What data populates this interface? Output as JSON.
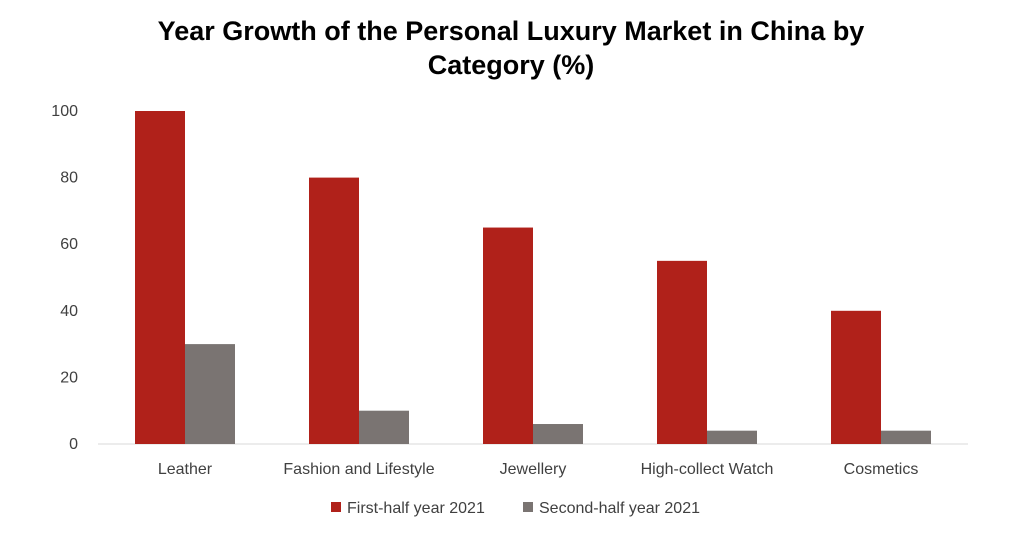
{
  "chart_data": {
    "type": "bar",
    "title_lines": [
      "Year Growth of the Personal Luxury Market in China by",
      "Category (%)"
    ],
    "categories": [
      "Leather",
      "Fashion and Lifestyle",
      "Jewellery",
      "High-collect Watch",
      "Cosmetics"
    ],
    "series": [
      {
        "name": "First-half year 2021",
        "values": [
          100,
          80,
          65,
          55,
          40
        ],
        "color": "#B0211A"
      },
      {
        "name": "Second-half year 2021",
        "values": [
          30,
          10,
          6,
          4,
          4
        ],
        "color": "#7A7472"
      }
    ],
    "ylim": [
      0,
      100
    ],
    "yticks": [
      "0",
      "20",
      "40",
      "60",
      "80",
      "100"
    ],
    "grid": false,
    "legend_position": "bottom"
  }
}
